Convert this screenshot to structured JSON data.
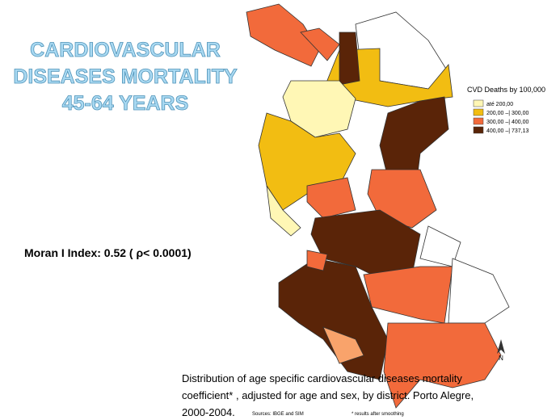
{
  "title_lines": [
    "CARDIOVASCULAR",
    "DISEASES MORTALITY",
    "45-64 YEARS"
  ],
  "moran": "Moran I Index: 0.52 ( ρ< 0.0001)",
  "legend": {
    "title": "CVD Deaths by 100,000",
    "items": [
      {
        "label": "até 200,00",
        "color": "#fff7b5"
      },
      {
        "label": "200,00 –| 300,00",
        "color": "#f2bd12"
      },
      {
        "label": "300,00 –| 400,00",
        "color": "#f26a3b"
      },
      {
        "label": "400,00 –| 737,13",
        "color": "#5a2408"
      }
    ]
  },
  "compass": "N",
  "caption": {
    "lines": [
      "Distribution of age specific cardiovascular diseases mortality",
      "coefficient* , adjusted for age and sex, by district. Porto Alegre,",
      "2000-2004."
    ],
    "sources": "Sources: IBGE and SIM",
    "note": "* results after smoothing"
  }
}
